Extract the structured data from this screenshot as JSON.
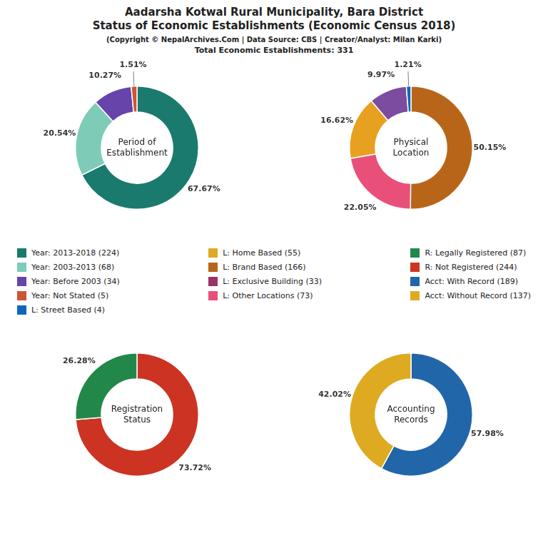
{
  "title": [
    "Aadarsha Kotwal Rural Municipality, Bara District",
    "Status of Economic Establishments (Economic Census 2018)"
  ],
  "subtitle": [
    "(Copyright © NepalArchives.Com | Data Source: CBS | Creator/Analyst: Milan Karki)",
    "Total Economic Establishments: 331"
  ],
  "legend_items": [
    {
      "label": "Year: 2013-2018 (224)",
      "color": "#1a7a6e"
    },
    {
      "label": "Year: 2003-2013 (68)",
      "color": "#7ecbb8"
    },
    {
      "label": "Year: Before 2003 (34)",
      "color": "#6644aa"
    },
    {
      "label": "Year: Not Stated (5)",
      "color": "#cc5533"
    },
    {
      "label": "L: Street Based (4)",
      "color": "#1166bb"
    },
    {
      "label": "L: Home Based (55)",
      "color": "#ddaa22"
    },
    {
      "label": "L: Brand Based (166)",
      "color": "#b8651a"
    },
    {
      "label": "L: Exclusive Building (33)",
      "color": "#993366"
    },
    {
      "label": "L: Other Locations (73)",
      "color": "#e8507a"
    },
    {
      "label": "R: Legally Registered (87)",
      "color": "#22884a"
    },
    {
      "label": "R: Not Registered (244)",
      "color": "#cc3322"
    },
    {
      "label": "Acct: With Record (189)",
      "color": "#2266aa"
    },
    {
      "label": "Acct: Without Record (137)",
      "color": "#ddaa22"
    }
  ],
  "chart_data": [
    {
      "type": "pie",
      "title": "Period of\nEstablishment",
      "values": [
        67.67,
        20.54,
        10.27,
        1.51
      ],
      "value_labels": [
        "67.67%",
        "20.54%",
        "10.27%",
        "1.51%"
      ],
      "colors": [
        "#1a7a6e",
        "#7ecbb8",
        "#6644aa",
        "#cc5533"
      ],
      "data_labels": true
    },
    {
      "type": "pie",
      "title": "Physical\nLocation",
      "values": [
        50.15,
        22.05,
        16.62,
        9.97,
        1.21
      ],
      "value_labels": [
        "50.15%",
        "22.05%",
        "16.62%",
        "9.97%",
        "1.21%"
      ],
      "colors": [
        "#b8651a",
        "#e8507a",
        "#e8a020",
        "#7b4ca0",
        "#1166bb"
      ],
      "data_labels": true
    },
    {
      "type": "pie",
      "title": "Registration\nStatus",
      "values": [
        73.72,
        26.28
      ],
      "value_labels": [
        "73.72%",
        "26.28%"
      ],
      "colors": [
        "#cc3322",
        "#22884a"
      ],
      "data_labels": true
    },
    {
      "type": "pie",
      "title": "Accounting\nRecords",
      "values": [
        57.98,
        42.02
      ],
      "value_labels": [
        "57.98%",
        "42.02%"
      ],
      "colors": [
        "#2266aa",
        "#ddaa22"
      ],
      "data_labels": true
    }
  ]
}
